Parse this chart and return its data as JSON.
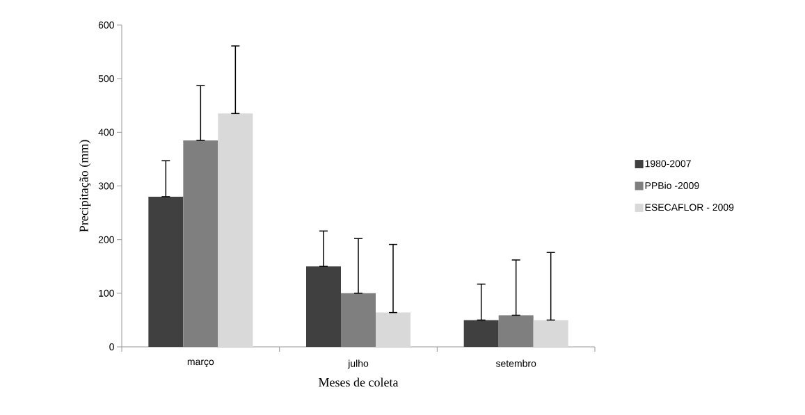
{
  "chart_data": {
    "type": "bar",
    "categories": [
      "março",
      "julho",
      "setembro"
    ],
    "xlabel": "Meses de coleta",
    "ylabel": "Precipitação (mm)",
    "ylim": [
      0,
      600
    ],
    "yticks": [
      0,
      100,
      200,
      300,
      400,
      500,
      600
    ],
    "legend": "right",
    "series": [
      {
        "name": "1980-2007",
        "color": "#404040",
        "values": [
          280,
          150,
          50
        ],
        "errors": [
          [
            280,
            347
          ],
          [
            150,
            216
          ],
          [
            50,
            117
          ]
        ]
      },
      {
        "name": "PPBio -2009",
        "color": "#7f7f7f",
        "values": [
          385,
          100,
          59
        ],
        "errors": [
          [
            385,
            487
          ],
          [
            100,
            202
          ],
          [
            59,
            162
          ]
        ]
      },
      {
        "name": "ESECAFLOR - 2009",
        "color": "#d9d9d9",
        "values": [
          435,
          64,
          50
        ],
        "errors": [
          [
            435,
            561
          ],
          [
            64,
            191
          ],
          [
            50,
            176
          ]
        ]
      }
    ]
  }
}
